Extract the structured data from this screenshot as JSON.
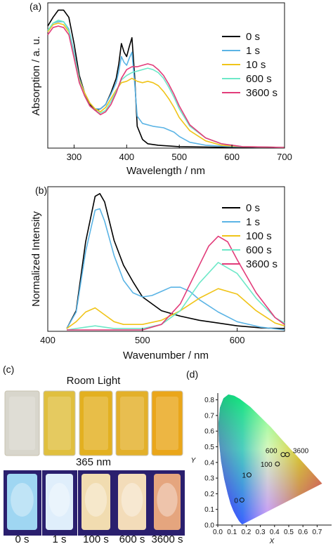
{
  "panels": {
    "a": "(a)",
    "b": "(b)",
    "c": "(c)",
    "d": "(d)"
  },
  "chart_data": [
    {
      "panel": "a",
      "type": "line",
      "xlabel": "Wavelength / nm",
      "ylabel": "Absorption / a. u.",
      "xlim": [
        250,
        700
      ],
      "ylim": [
        0,
        1.0
      ],
      "xticks": [
        300,
        400,
        500,
        600,
        700
      ],
      "legend_position": "top-right",
      "series": [
        {
          "name": "0 s",
          "color": "#000000",
          "points": [
            [
              250,
              0.84
            ],
            [
              260,
              0.9
            ],
            [
              270,
              0.95
            ],
            [
              280,
              0.95
            ],
            [
              290,
              0.9
            ],
            [
              300,
              0.72
            ],
            [
              310,
              0.5
            ],
            [
              320,
              0.38
            ],
            [
              330,
              0.3
            ],
            [
              340,
              0.26
            ],
            [
              350,
              0.27
            ],
            [
              360,
              0.3
            ],
            [
              370,
              0.38
            ],
            [
              380,
              0.48
            ],
            [
              385,
              0.58
            ],
            [
              390,
              0.72
            ],
            [
              395,
              0.66
            ],
            [
              400,
              0.63
            ],
            [
              405,
              0.7
            ],
            [
              410,
              0.76
            ],
            [
              415,
              0.5
            ],
            [
              420,
              0.15
            ],
            [
              430,
              0.06
            ],
            [
              440,
              0.03
            ],
            [
              460,
              0.02
            ],
            [
              500,
              0.01
            ],
            [
              600,
              0.005
            ],
            [
              700,
              0.005
            ]
          ]
        },
        {
          "name": "1 s",
          "color": "#5bb4e5",
          "points": [
            [
              250,
              0.8
            ],
            [
              260,
              0.86
            ],
            [
              270,
              0.87
            ],
            [
              280,
              0.87
            ],
            [
              290,
              0.82
            ],
            [
              300,
              0.66
            ],
            [
              310,
              0.48
            ],
            [
              320,
              0.38
            ],
            [
              330,
              0.31
            ],
            [
              340,
              0.27
            ],
            [
              350,
              0.27
            ],
            [
              360,
              0.3
            ],
            [
              370,
              0.37
            ],
            [
              380,
              0.45
            ],
            [
              385,
              0.53
            ],
            [
              390,
              0.63
            ],
            [
              395,
              0.59
            ],
            [
              400,
              0.57
            ],
            [
              405,
              0.62
            ],
            [
              410,
              0.66
            ],
            [
              415,
              0.45
            ],
            [
              420,
              0.22
            ],
            [
              430,
              0.17
            ],
            [
              450,
              0.15
            ],
            [
              470,
              0.14
            ],
            [
              490,
              0.11
            ],
            [
              500,
              0.08
            ],
            [
              520,
              0.04
            ],
            [
              550,
              0.02
            ],
            [
              600,
              0.01
            ],
            [
              700,
              0.005
            ]
          ]
        },
        {
          "name": "10 s",
          "color": "#f0c419",
          "points": [
            [
              250,
              0.8
            ],
            [
              260,
              0.85
            ],
            [
              270,
              0.86
            ],
            [
              280,
              0.85
            ],
            [
              290,
              0.8
            ],
            [
              300,
              0.64
            ],
            [
              310,
              0.47
            ],
            [
              320,
              0.38
            ],
            [
              330,
              0.31
            ],
            [
              340,
              0.27
            ],
            [
              350,
              0.25
            ],
            [
              360,
              0.28
            ],
            [
              370,
              0.34
            ],
            [
              380,
              0.4
            ],
            [
              390,
              0.45
            ],
            [
              400,
              0.46
            ],
            [
              410,
              0.48
            ],
            [
              420,
              0.46
            ],
            [
              430,
              0.45
            ],
            [
              440,
              0.46
            ],
            [
              450,
              0.45
            ],
            [
              460,
              0.43
            ],
            [
              470,
              0.39
            ],
            [
              480,
              0.34
            ],
            [
              490,
              0.28
            ],
            [
              500,
              0.21
            ],
            [
              520,
              0.12
            ],
            [
              550,
              0.05
            ],
            [
              580,
              0.02
            ],
            [
              620,
              0.01
            ],
            [
              700,
              0.005
            ]
          ]
        },
        {
          "name": "600 s",
          "color": "#6ee8c8",
          "points": [
            [
              250,
              0.81
            ],
            [
              260,
              0.86
            ],
            [
              270,
              0.88
            ],
            [
              280,
              0.87
            ],
            [
              290,
              0.81
            ],
            [
              300,
              0.64
            ],
            [
              310,
              0.46
            ],
            [
              320,
              0.36
            ],
            [
              330,
              0.29
            ],
            [
              340,
              0.26
            ],
            [
              350,
              0.24
            ],
            [
              360,
              0.26
            ],
            [
              370,
              0.32
            ],
            [
              380,
              0.39
            ],
            [
              390,
              0.47
            ],
            [
              400,
              0.5
            ],
            [
              410,
              0.52
            ],
            [
              420,
              0.53
            ],
            [
              430,
              0.54
            ],
            [
              440,
              0.55
            ],
            [
              450,
              0.54
            ],
            [
              460,
              0.52
            ],
            [
              470,
              0.48
            ],
            [
              480,
              0.42
            ],
            [
              490,
              0.35
            ],
            [
              500,
              0.27
            ],
            [
              520,
              0.15
            ],
            [
              550,
              0.07
            ],
            [
              580,
              0.03
            ],
            [
              620,
              0.01
            ],
            [
              700,
              0.005
            ]
          ]
        },
        {
          "name": "3600 s",
          "color": "#e23c7a",
          "points": [
            [
              250,
              0.78
            ],
            [
              260,
              0.83
            ],
            [
              270,
              0.84
            ],
            [
              280,
              0.83
            ],
            [
              290,
              0.78
            ],
            [
              300,
              0.62
            ],
            [
              310,
              0.45
            ],
            [
              320,
              0.36
            ],
            [
              330,
              0.29
            ],
            [
              340,
              0.26
            ],
            [
              350,
              0.23
            ],
            [
              360,
              0.25
            ],
            [
              370,
              0.3
            ],
            [
              380,
              0.38
            ],
            [
              390,
              0.48
            ],
            [
              400,
              0.54
            ],
            [
              410,
              0.56
            ],
            [
              420,
              0.56
            ],
            [
              430,
              0.57
            ],
            [
              440,
              0.58
            ],
            [
              450,
              0.57
            ],
            [
              460,
              0.54
            ],
            [
              470,
              0.5
            ],
            [
              480,
              0.44
            ],
            [
              490,
              0.37
            ],
            [
              500,
              0.29
            ],
            [
              520,
              0.16
            ],
            [
              550,
              0.07
            ],
            [
              580,
              0.03
            ],
            [
              620,
              0.01
            ],
            [
              700,
              0.005
            ]
          ]
        }
      ]
    },
    {
      "panel": "b",
      "type": "line",
      "xlabel": "Wavenumber / nm",
      "ylabel": "Normalized Intensity",
      "xlim": [
        400,
        650
      ],
      "ylim": [
        0,
        1.05
      ],
      "xticks": [
        400,
        500,
        600
      ],
      "legend_position": "top-right",
      "series": [
        {
          "name": "0 s",
          "color": "#000000",
          "points": [
            [
              420,
              0.02
            ],
            [
              430,
              0.15
            ],
            [
              440,
              0.65
            ],
            [
              450,
              0.98
            ],
            [
              455,
              1.0
            ],
            [
              460,
              0.94
            ],
            [
              470,
              0.66
            ],
            [
              480,
              0.48
            ],
            [
              490,
              0.36
            ],
            [
              500,
              0.25
            ],
            [
              520,
              0.15
            ],
            [
              540,
              0.11
            ],
            [
              560,
              0.08
            ],
            [
              580,
              0.06
            ],
            [
              600,
              0.04
            ],
            [
              625,
              0.025
            ],
            [
              650,
              0.02
            ]
          ]
        },
        {
          "name": "1 s",
          "color": "#5bb4e5",
          "points": [
            [
              420,
              0.02
            ],
            [
              430,
              0.14
            ],
            [
              440,
              0.58
            ],
            [
              450,
              0.88
            ],
            [
              455,
              0.89
            ],
            [
              460,
              0.8
            ],
            [
              470,
              0.55
            ],
            [
              480,
              0.37
            ],
            [
              490,
              0.28
            ],
            [
              500,
              0.25
            ],
            [
              510,
              0.26
            ],
            [
              520,
              0.29
            ],
            [
              530,
              0.32
            ],
            [
              540,
              0.32
            ],
            [
              550,
              0.29
            ],
            [
              560,
              0.23
            ],
            [
              580,
              0.14
            ],
            [
              600,
              0.07
            ],
            [
              625,
              0.03
            ],
            [
              650,
              0.01
            ]
          ]
        },
        {
          "name": "100 s",
          "color": "#f0c419",
          "points": [
            [
              420,
              0.02
            ],
            [
              430,
              0.07
            ],
            [
              440,
              0.14
            ],
            [
              450,
              0.17
            ],
            [
              460,
              0.12
            ],
            [
              470,
              0.07
            ],
            [
              480,
              0.05
            ],
            [
              500,
              0.05
            ],
            [
              520,
              0.08
            ],
            [
              540,
              0.15
            ],
            [
              560,
              0.24
            ],
            [
              580,
              0.31
            ],
            [
              600,
              0.27
            ],
            [
              620,
              0.15
            ],
            [
              640,
              0.06
            ],
            [
              650,
              0.04
            ]
          ]
        },
        {
          "name": "600 s",
          "color": "#6ee8c8",
          "points": [
            [
              420,
              0.01
            ],
            [
              440,
              0.03
            ],
            [
              450,
              0.04
            ],
            [
              470,
              0.02
            ],
            [
              500,
              0.02
            ],
            [
              520,
              0.05
            ],
            [
              540,
              0.15
            ],
            [
              560,
              0.35
            ],
            [
              580,
              0.5
            ],
            [
              600,
              0.42
            ],
            [
              620,
              0.24
            ],
            [
              640,
              0.1
            ],
            [
              650,
              0.06
            ]
          ]
        },
        {
          "name": "3600 s",
          "color": "#e23c7a",
          "points": [
            [
              420,
              0.01
            ],
            [
              440,
              0.01
            ],
            [
              460,
              0.01
            ],
            [
              500,
              0.01
            ],
            [
              520,
              0.05
            ],
            [
              540,
              0.2
            ],
            [
              560,
              0.48
            ],
            [
              570,
              0.62
            ],
            [
              580,
              0.69
            ],
            [
              590,
              0.65
            ],
            [
              600,
              0.52
            ],
            [
              620,
              0.28
            ],
            [
              640,
              0.1
            ],
            [
              650,
              0.05
            ]
          ]
        }
      ]
    },
    {
      "panel": "d",
      "type": "scatter",
      "xlabel": "X",
      "ylabel": "Y",
      "xlim": [
        0.0,
        0.8
      ],
      "ylim": [
        0.0,
        0.85
      ],
      "xticks": [
        0.0,
        0.1,
        0.2,
        0.3,
        0.4,
        0.5,
        0.6,
        0.7
      ],
      "xtick_labels": [
        "0.0",
        "0.1",
        "0.2",
        "0.3",
        "0.4",
        "0.5",
        "0.6",
        "0.7"
      ],
      "yticks": [
        0.0,
        0.1,
        0.2,
        0.3,
        0.4,
        0.5,
        0.6,
        0.7,
        0.8
      ],
      "ytick_labels": [
        "0.0",
        "0.1",
        "0.2",
        "0.3",
        "0.4",
        "0.5",
        "0.6",
        "0.7",
        "0.8"
      ],
      "points": [
        {
          "label": "0",
          "x": 0.17,
          "y": 0.16
        },
        {
          "label": "1",
          "x": 0.22,
          "y": 0.32
        },
        {
          "label": "100",
          "x": 0.42,
          "y": 0.39
        },
        {
          "label": "600",
          "x": 0.46,
          "y": 0.45
        },
        {
          "label": "3600",
          "x": 0.49,
          "y": 0.45
        }
      ]
    }
  ],
  "photos": {
    "room_light_label": "Room Light",
    "uv_label": "365 nm",
    "times": [
      "0 s",
      "1 s",
      "100 s",
      "600 s",
      "3600 s"
    ],
    "room_colors": [
      "#d8d6cc",
      "#e0bf3e",
      "#e3b020",
      "#e3b02a",
      "#eaa61a"
    ],
    "uv_colors": [
      "#9fd6f2",
      "#dfeefb",
      "#f1dcb0",
      "#f3dcb9",
      "#e5a57e"
    ]
  }
}
